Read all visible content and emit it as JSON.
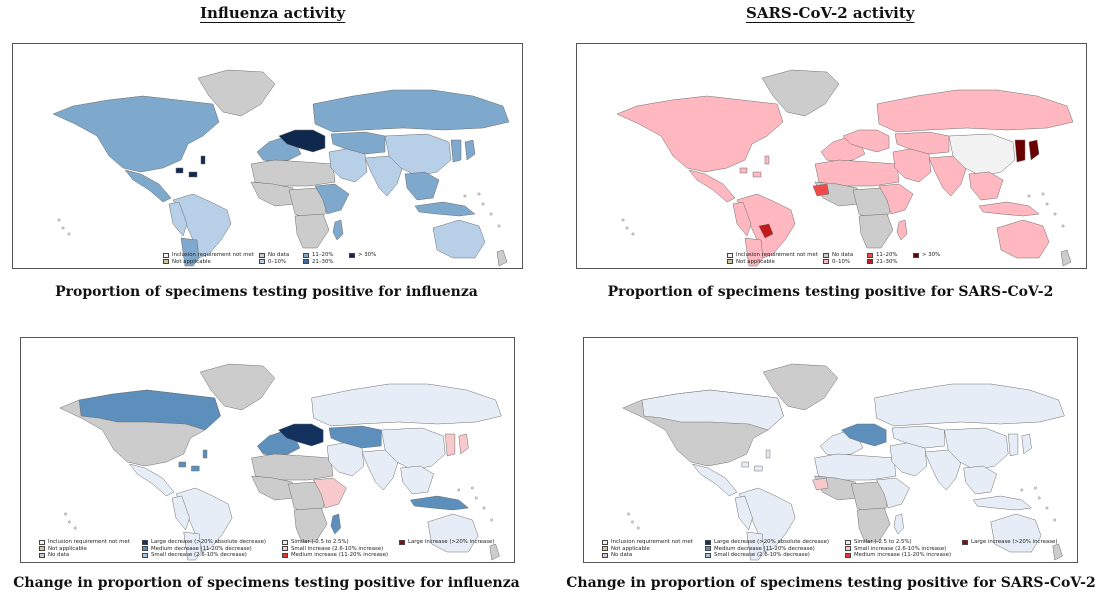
{
  "titles": {
    "left": "Influenza activity",
    "right": "SARS-CoV-2 activity"
  },
  "captions": {
    "top_left": "Proportion of specimens testing positive for influenza",
    "top_right": "Proportion of specimens testing positive for SARS-CoV-2",
    "bottom_left": "Change in proportion of specimens testing positive for influenza",
    "bottom_right": "Change in proportion of specimens testing positive for SARS-CoV-2"
  },
  "colors": {
    "no_data": "#cccccc",
    "inclusion_not_met": "#f2f2f2",
    "not_applicable": "#d9c79a",
    "flu": {
      "0-10": "#b8cfe8",
      "11-20": "#7ea8cc",
      "21-30": "#3a6f9e",
      "gt30": "#10284d"
    },
    "cov": {
      "0-10": "#ffb8bf",
      "11-20": "#ef4a4a",
      "21-30": "#c41a1a",
      "gt30": "#6b0000"
    },
    "change": {
      "large_decrease": "#12315e",
      "medium_decrease": "#5d8fbc",
      "small_decrease": "#a9c4df",
      "similar": "#e6edf6",
      "small_increase": "#f7c9cc",
      "medium_increase": "#e33535",
      "large_increase": "#8c0a0a"
    }
  },
  "legend_proportion": {
    "inclusion": "Inclusion requirement not met",
    "not_applicable": "Not applicable",
    "no_data": "No data",
    "b0_10": "0–10%",
    "b11_20": "11–20%",
    "b21_30": "21–30%",
    "gt30": "> 30%"
  },
  "legend_change": {
    "inclusion": "Inclusion requirement not met",
    "not_applicable": "Not applicable",
    "no_data": "No data",
    "large_decrease": "Large decrease (>20% absolute decrease)",
    "medium_decrease": "Medium decrease (11-20% decrease)",
    "small_decrease": "Small decrease (2.6-10% decrease)",
    "similar": "Similar (-2.5 to 2.5%)",
    "small_increase": "Small increase (2.6-10% increase)",
    "medium_increase": "Medium increase (11-20% increase)",
    "large_increase": "Large increase (>20% increase)"
  },
  "maps": {
    "flu_proportion": {
      "north_america": "11-20",
      "greenland": "no_data",
      "central_america": "11-20",
      "caribbean": "gt30",
      "south_america": "0-10",
      "south_america_west": "0-10",
      "southern_cone": "11-20",
      "europe_west": "11-20",
      "europe_central": "gt30",
      "north_africa": "no_data",
      "west_africa": "no_data",
      "central_africa": "no_data",
      "east_africa": "11-20",
      "southern_africa": "no_data",
      "madagascar": "11-20",
      "russia": "11-20",
      "middle_east": "0-10",
      "central_asia": "11-20",
      "south_asia": "0-10",
      "china": "0-10",
      "east_asia": "11-20",
      "southeast_asia": "11-20",
      "indonesia": "11-20",
      "australia": "0-10",
      "new_zealand": "no_data"
    },
    "cov_proportion": {
      "north_america": "0-10",
      "greenland": "no_data",
      "central_america": "0-10",
      "caribbean": "0-10",
      "south_america": "0-10",
      "south_america_west": "0-10",
      "southern_cone": "0-10",
      "paraguay": "21-30",
      "europe_west": "0-10",
      "europe_central": "0-10",
      "north_africa": "0-10",
      "west_africa": "no_data",
      "sahel_west": "11-20",
      "central_africa": "no_data",
      "east_africa": "0-10",
      "southern_africa": "no_data",
      "madagascar": "0-10",
      "russia": "0-10",
      "middle_east": "0-10",
      "central_asia": "0-10",
      "south_asia": "0-10",
      "china": "inclusion",
      "east_asia": "gt30",
      "southeast_asia": "0-10",
      "indonesia": "0-10",
      "australia": "0-10",
      "new_zealand": "no_data"
    },
    "flu_change": {
      "north_america": "no_data",
      "canada": "medium_decrease",
      "greenland": "no_data",
      "central_america": "similar",
      "caribbean": "medium_decrease",
      "south_america": "similar",
      "south_america_west": "similar",
      "southern_cone": "similar",
      "europe_west": "medium_decrease",
      "europe_central": "large_decrease",
      "north_africa": "no_data",
      "west_africa": "no_data",
      "central_africa": "no_data",
      "east_africa": "small_increase",
      "southern_africa": "no_data",
      "madagascar": "medium_decrease",
      "russia": "similar",
      "central_asia": "medium_decrease",
      "middle_east": "similar",
      "south_asia": "similar",
      "china": "similar",
      "east_asia": "small_increase",
      "southeast_asia": "similar",
      "indonesia": "medium_decrease",
      "australia": "similar",
      "new_zealand": "no_data"
    },
    "cov_change": {
      "north_america": "no_data",
      "canada": "similar",
      "greenland": "no_data",
      "central_america": "similar",
      "caribbean": "similar",
      "south_america": "similar",
      "south_america_west": "similar",
      "southern_cone": "similar",
      "europe_west": "similar",
      "europe_central": "medium_decrease",
      "north_africa": "similar",
      "west_africa": "no_data",
      "sahel_west": "small_increase",
      "central_africa": "no_data",
      "east_africa": "similar",
      "southern_africa": "no_data",
      "madagascar": "similar",
      "russia": "similar",
      "central_asia": "similar",
      "middle_east": "similar",
      "south_asia": "similar",
      "china": "similar",
      "east_asia": "similar",
      "southeast_asia": "similar",
      "indonesia": "similar",
      "australia": "similar",
      "new_zealand": "no_data"
    }
  }
}
